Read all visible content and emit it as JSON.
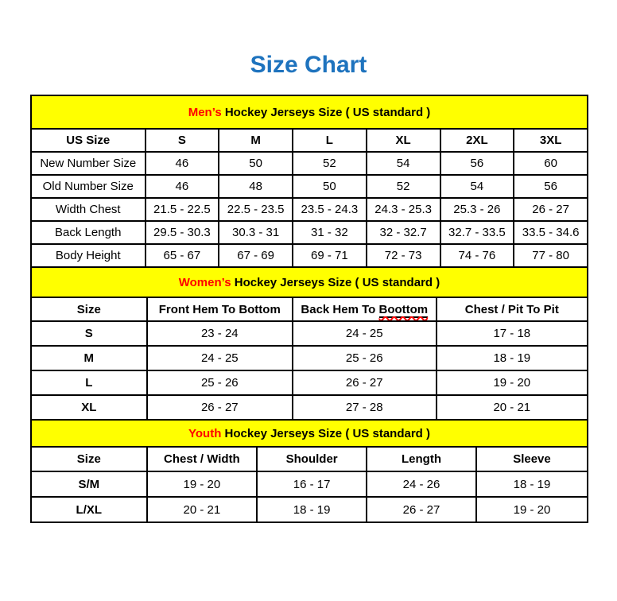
{
  "page_title": {
    "text": "Size Chart"
  },
  "colors": {
    "title_blue": "#1E73BE",
    "band_yellow": "#FFFF00",
    "highlight_red": "#FF0000",
    "border_black": "#000000"
  },
  "tables": [
    {
      "id": "mens",
      "title_highlight": "Men’s",
      "title_rest": " Hockey Jerseys Size ( US standard )",
      "columns": [
        "US Size",
        "S",
        "M",
        "L",
        "XL",
        "2XL",
        "3XL"
      ],
      "row_label_bold": false,
      "rows": [
        [
          "New Number Size",
          "46",
          "50",
          "52",
          "54",
          "56",
          "60"
        ],
        [
          "Old Number Size",
          "46",
          "48",
          "50",
          "52",
          "54",
          "56"
        ],
        [
          "Width Chest",
          "21.5 - 22.5",
          "22.5 - 23.5",
          "23.5 - 24.3",
          "24.3 - 25.3",
          "25.3 - 26",
          "26 - 27"
        ],
        [
          "Back Length",
          "29.5 - 30.3",
          "30.3 - 31",
          "31 - 32",
          "32 - 32.7",
          "32.7 - 33.5",
          "33.5 - 34.6"
        ],
        [
          "Body Height",
          "65 - 67",
          "67 - 69",
          "69 - 71",
          "72 - 73",
          "74 - 76",
          "77 - 80"
        ]
      ]
    },
    {
      "id": "womens",
      "title_highlight": "Women’s",
      "title_rest": " Hockey Jerseys Size ( US standard )",
      "columns": [
        "Size",
        "Front Hem To Bottom",
        "Back Hem To Boottom",
        "Chest / Pit To Pit"
      ],
      "underline_word": "Boottom",
      "row_label_bold": true,
      "rows": [
        [
          "S",
          "23 - 24",
          "24 - 25",
          "17 - 18"
        ],
        [
          "M",
          "24 - 25",
          "25 - 26",
          "18 - 19"
        ],
        [
          "L",
          "25 - 26",
          "26 - 27",
          "19 - 20"
        ],
        [
          "XL",
          "26 - 27",
          "27 - 28",
          "20 - 21"
        ]
      ]
    },
    {
      "id": "youth",
      "title_highlight": "Youth",
      "title_rest": " Hockey Jerseys Size ( US standard )",
      "columns": [
        "Size",
        "Chest / Width",
        "Shoulder",
        "Length",
        "Sleeve"
      ],
      "row_label_bold": true,
      "rows": [
        [
          "S/M",
          "19 - 20",
          "16 - 17",
          "24 - 26",
          "18 - 19"
        ],
        [
          "L/XL",
          "20 - 21",
          "18 - 19",
          "26 - 27",
          "19 - 20"
        ]
      ]
    }
  ]
}
